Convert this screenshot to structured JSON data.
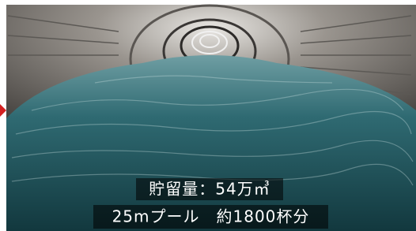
{
  "captions": [
    "貯留量：54万㎥",
    "25mプール　約1800杯分"
  ]
}
